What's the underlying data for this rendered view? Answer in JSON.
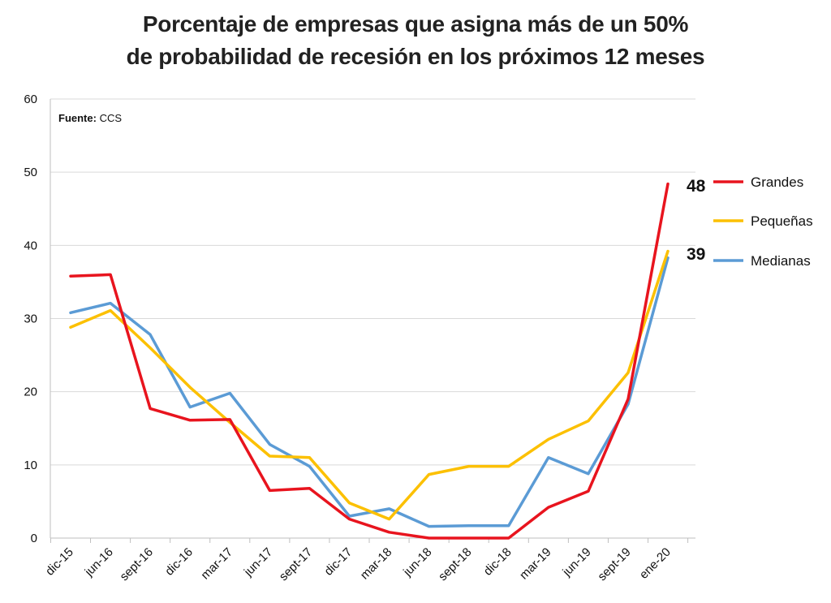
{
  "chart_data": {
    "type": "line",
    "title": [
      "Porcentaje de empresas que asigna más de un 50%",
      "de probabilidad de recesión en los próximos 12 meses"
    ],
    "source_label": "Fuente:",
    "source_value": " CCS",
    "xlabel": "",
    "ylabel": "",
    "ylim": [
      0,
      60
    ],
    "yticks": [
      0,
      10,
      20,
      30,
      40,
      50,
      60
    ],
    "grid": true,
    "legend_position": "right",
    "categories": [
      "dic-15",
      "jun-16",
      "sept-16",
      "dic-16",
      "mar-17",
      "jun-17",
      "sept-17",
      "dic-17",
      "mar-18",
      "jun-18",
      "sept-18",
      "dic-18",
      "mar-19",
      "jun-19",
      "sept-19",
      "ene-20"
    ],
    "series": [
      {
        "name": "Grandes",
        "color": "#e8141e",
        "values": [
          35.8,
          36.0,
          17.7,
          16.1,
          16.2,
          6.5,
          6.8,
          2.6,
          0.8,
          0.0,
          0.0,
          0.0,
          4.2,
          6.4,
          19.0,
          48.4
        ]
      },
      {
        "name": "Pequeñas",
        "color": "#fcc000",
        "values": [
          28.8,
          31.1,
          26.0,
          20.6,
          15.8,
          11.2,
          11.0,
          4.8,
          2.6,
          8.7,
          9.8,
          9.8,
          13.5,
          16.0,
          22.6,
          39.2
        ]
      },
      {
        "name": "Medianas",
        "color": "#5b9bd5",
        "values": [
          30.8,
          32.1,
          27.8,
          17.9,
          19.8,
          12.8,
          9.8,
          3.0,
          4.0,
          1.6,
          1.7,
          1.7,
          11.0,
          8.8,
          18.3,
          38.3
        ]
      }
    ],
    "end_labels": [
      "48",
      "39"
    ]
  }
}
